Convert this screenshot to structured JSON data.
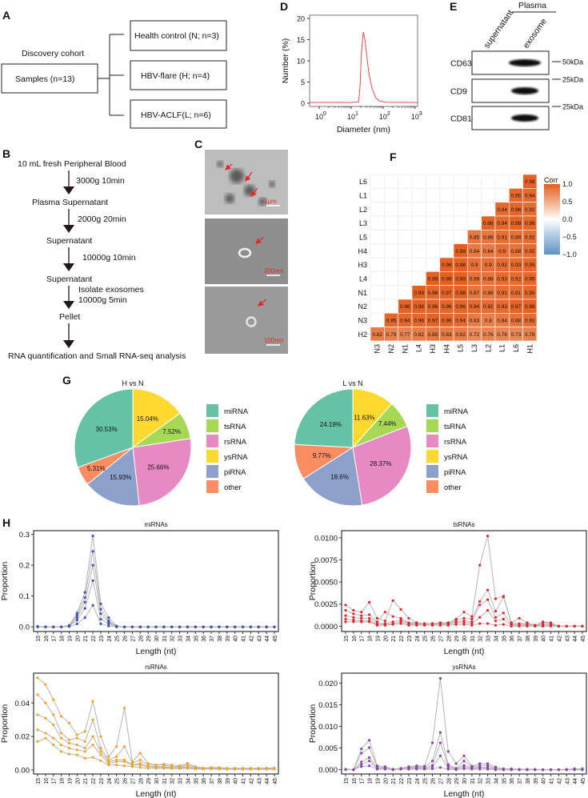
{
  "panel_labels": {
    "A": "A",
    "B": "B",
    "C": "C",
    "D": "D",
    "E": "E",
    "F": "F",
    "G": "G",
    "H": "H"
  },
  "panel_a": {
    "cohort_title": "Discovery cohort",
    "samples": "Samples  (n=13)",
    "groups": [
      "Health control  (N; n=3)",
      "HBV-flare (H; n=4)",
      "HBV-ACLF(L; n=6)"
    ]
  },
  "panel_b": {
    "steps": [
      "10 mL fresh Peripheral Blood",
      "Plasma Supernatant",
      "Supernatant",
      "Supernatant",
      "Pellet",
      "RNA quantification and  Small RNA-seq analysis"
    ],
    "conditions": [
      "3000g  10min",
      "2000g  20min",
      "10000g  10min",
      "Isolate exosomes",
      "10000g  5min"
    ]
  },
  "panel_c": {
    "scale_bars": [
      "1μm",
      "200nm",
      "100nm"
    ]
  },
  "panel_e": {
    "group": "Plasma",
    "lanes": [
      "supernatant",
      "exosome"
    ],
    "proteins": [
      "CD63",
      "CD9",
      "CD81"
    ],
    "markers": [
      "50kDa",
      "25kDa",
      "25kDa"
    ]
  },
  "colors": {
    "heat_high": "#E35F1E",
    "heat_low": "#5F93C2",
    "dls_line": "#F0484B",
    "mi": "#3F51B5",
    "ts": "#F0202A",
    "rs": "#F9A21B",
    "ys": "#8E44AD",
    "line_gray": "#B5B5B5"
  },
  "chart_data": [
    {
      "id": "D",
      "type": "line",
      "xlabel": "Diameter (nm)",
      "ylabel": "Number (%)",
      "xscale": "log",
      "xlim": [
        0.5,
        1200
      ],
      "ylim": [
        0,
        20
      ],
      "xticks": [
        1,
        10,
        100,
        1000
      ],
      "xtick_labels": [
        "10",
        "10",
        "10",
        "10"
      ],
      "xtick_exps": [
        "0",
        "1",
        "2",
        "3"
      ],
      "yticks": [
        0,
        5,
        10,
        15,
        20
      ],
      "ytick_labels": [
        "0",
        "5",
        "10",
        "15",
        "20"
      ],
      "x": [
        0.5,
        1,
        10,
        17,
        19,
        21,
        24,
        27,
        31,
        36,
        45,
        60,
        80,
        120,
        1000,
        1200
      ],
      "y": [
        0.2,
        0.2,
        0.2,
        0.3,
        4,
        12,
        16.8,
        15,
        11,
        7,
        3.5,
        1.2,
        0.5,
        0.25,
        0.2,
        0.2
      ]
    },
    {
      "id": "F",
      "type": "heatmap",
      "legend_title": "Corr",
      "legend_ticks": [
        "1.0",
        "0.5",
        "0.0",
        "−0.5",
        "−1.0"
      ],
      "rows": [
        "L6",
        "L1",
        "L2",
        "L3",
        "L5",
        "H4",
        "H3",
        "L4",
        "N1",
        "N2",
        "N3",
        "H2"
      ],
      "cols": [
        "N3",
        "N2",
        "N1",
        "L4",
        "H3",
        "H4",
        "L5",
        "L3",
        "L2",
        "L1",
        "L6",
        "H1"
      ],
      "values": [
        [
          0.98
        ],
        [
          0.95,
          0.94
        ],
        [
          0.94,
          0.96,
          0.92
        ],
        [
          0.98,
          0.94,
          0.98,
          0.96
        ],
        [
          0.85,
          0.86,
          0.91,
          0.89,
          0.92
        ],
        [
          0.99,
          0.84,
          0.84,
          0.9,
          0.88,
          0.92
        ],
        [
          0.98,
          0.98,
          0.9,
          0.9,
          0.92,
          0.93,
          0.95
        ],
        [
          0.99,
          0.99,
          0.99,
          0.89,
          0.88,
          0.93,
          0.92,
          0.95
        ],
        [
          0.99,
          0.96,
          0.97,
          0.98,
          0.87,
          0.86,
          0.91,
          0.91,
          0.95
        ],
        [
          0.98,
          0.98,
          0.96,
          0.96,
          0.96,
          0.94,
          0.92,
          0.93,
          0.97,
          0.98
        ],
        [
          0.95,
          0.94,
          0.96,
          0.97,
          0.96,
          0.94,
          0.83,
          0.8,
          0.84,
          0.88,
          0.92
        ],
        [
          0.82,
          0.79,
          0.77,
          0.82,
          0.85,
          0.83,
          0.82,
          0.72,
          0.76,
          0.76,
          0.73,
          0.78
        ]
      ]
    },
    {
      "id": "G1",
      "type": "pie",
      "title": "H  vs  N",
      "slices": [
        {
          "name": "ysRNA",
          "value": 15.04,
          "label": "15.04%",
          "color": "#FFD92F"
        },
        {
          "name": "tsRNA",
          "value": 7.52,
          "label": "7.52%",
          "color": "#A6D854"
        },
        {
          "name": "rsRNA",
          "value": 25.66,
          "label": "25.66%",
          "color": "#E78AC3"
        },
        {
          "name": "piRNA",
          "value": 15.93,
          "label": "15.93%",
          "color": "#8DA0CB"
        },
        {
          "name": "other",
          "value": 5.31,
          "label": "5.31%",
          "color": "#FC8D62"
        },
        {
          "name": "miRNA",
          "value": 30.53,
          "label": "30.53%",
          "color": "#66C2A5"
        }
      ],
      "legend": [
        "miRNA",
        "tsRNA",
        "rsRNA",
        "ysRNA",
        "piRNA",
        "other"
      ]
    },
    {
      "id": "G2",
      "type": "pie",
      "title": "L  vs  N",
      "slices": [
        {
          "name": "ysRNA",
          "value": 11.63,
          "label": "11.63%",
          "color": "#FFD92F"
        },
        {
          "name": "tsRNA",
          "value": 7.44,
          "label": "7.44%",
          "color": "#A6D854"
        },
        {
          "name": "rsRNA",
          "value": 28.37,
          "label": "28.37%",
          "color": "#E78AC3"
        },
        {
          "name": "piRNA",
          "value": 18.6,
          "label": "18.6%",
          "color": "#8DA0CB"
        },
        {
          "name": "other",
          "value": 9.77,
          "label": "9.77%",
          "color": "#FC8D62"
        },
        {
          "name": "miRNA",
          "value": 24.19,
          "label": "24.19%",
          "color": "#66C2A5"
        }
      ],
      "legend": [
        "miRNA",
        "tsRNA",
        "rsRNA",
        "ysRNA",
        "piRNA",
        "other"
      ]
    },
    {
      "id": "H-mi",
      "type": "line",
      "title": "miRNAs",
      "xlabel": "Length (nt)",
      "ylabel": "Proportion",
      "x_start": 15,
      "x_end": 45,
      "ylim": [
        -0.015,
        0.312
      ],
      "yticks": [
        0,
        0.1,
        0.2,
        0.3
      ],
      "ytick_labels": [
        "0.0",
        "0.1",
        "0.2",
        "0.3"
      ],
      "color_key": "mi",
      "series": [
        [
          0.002,
          0,
          0,
          0,
          0.005,
          0.045,
          0.112,
          0.295,
          0.075,
          0.03,
          0.003,
          0,
          0,
          0,
          0,
          0,
          0,
          0,
          0,
          0,
          0,
          0,
          0,
          0,
          0,
          0,
          0,
          0,
          0,
          0,
          0
        ],
        [
          0.001,
          0,
          0,
          0,
          0.004,
          0.038,
          0.095,
          0.245,
          0.057,
          0.02,
          0.002,
          0,
          0,
          0,
          0,
          0,
          0,
          0,
          0,
          0,
          0,
          0,
          0,
          0,
          0,
          0,
          0,
          0,
          0,
          0,
          0
        ],
        [
          0.001,
          0,
          0,
          0,
          0.003,
          0.03,
          0.08,
          0.2,
          0.043,
          0.015,
          0.001,
          0,
          0,
          0,
          0,
          0,
          0,
          0,
          0,
          0,
          0,
          0,
          0,
          0,
          0,
          0,
          0,
          0,
          0,
          0,
          0
        ],
        [
          0,
          0,
          0,
          0,
          0.002,
          0.022,
          0.06,
          0.15,
          0.025,
          0.01,
          0.001,
          0,
          0,
          0,
          0,
          0,
          0,
          0,
          0,
          0,
          0,
          0,
          0,
          0,
          0,
          0,
          0,
          0,
          0,
          0,
          0
        ],
        [
          0,
          0,
          0,
          0,
          0.001,
          0.01,
          0.03,
          0.07,
          0.01,
          0.003,
          0,
          0,
          0,
          0,
          0,
          0,
          0,
          0,
          0,
          0,
          0,
          0,
          0,
          0,
          0,
          0,
          0,
          0,
          0,
          0,
          0
        ]
      ]
    },
    {
      "id": "H-ts",
      "type": "line",
      "title": "tsRNAs",
      "xlabel": "Length (nt)",
      "ylabel": "Proportion",
      "x_start": 15,
      "x_end": 45,
      "ylim": [
        -0.0006,
        0.0108
      ],
      "yticks": [
        0,
        0.0025,
        0.005,
        0.0075,
        0.01
      ],
      "ytick_labels": [
        "0.0000",
        "0.0025",
        "0.0050",
        "0.0075",
        "0.0100"
      ],
      "color_key": "ts",
      "series": [
        [
          0.0024,
          0.0018,
          0.0016,
          0.0027,
          0.0009,
          0.0006,
          0.0029,
          0.0019,
          0.0009,
          0.0004,
          0.0003,
          0.0003,
          0.0004,
          0.0004,
          0.0008,
          0.0016,
          0.0011,
          0.0069,
          0.0102,
          0.0031,
          0.0034,
          0.0004,
          0.0009,
          0.0004,
          0.0001,
          0.0005,
          0.0004,
          0,
          0,
          0,
          0
        ],
        [
          0.0018,
          0.0014,
          0.0012,
          0.0013,
          0.0005,
          0.0016,
          0.0011,
          0.0009,
          0.0004,
          0.0004,
          0.0003,
          0.0003,
          0.0004,
          0.0004,
          0.0007,
          0.0009,
          0.0008,
          0.0028,
          0.0041,
          0.0017,
          0.0033,
          0.0003,
          0.0003,
          0.0003,
          0.0001,
          0.0004,
          0.0003,
          0,
          0,
          0,
          0
        ],
        [
          0.0012,
          0.001,
          0.0009,
          0.0009,
          0.0003,
          0.0003,
          0.0005,
          0.0007,
          0.0003,
          0.0003,
          0.0002,
          0.0003,
          0.0003,
          0.0003,
          0.0005,
          0.0006,
          0.0005,
          0.0024,
          0.003,
          0.001,
          0.0015,
          0.0002,
          0.0002,
          0.0002,
          0.0001,
          0.0002,
          0.0002,
          0,
          0,
          0,
          0
        ],
        [
          0.0008,
          0.0007,
          0.0006,
          0.0006,
          0.0002,
          0.0002,
          0.0003,
          0.0005,
          0.0002,
          0.0002,
          0.0002,
          0.0002,
          0.0002,
          0.0002,
          0.0004,
          0.0004,
          0.0003,
          0.001,
          0.0018,
          0.0006,
          0.0008,
          0.0001,
          0.0001,
          0.0001,
          0.0001,
          0.0001,
          0.0001,
          0,
          0,
          0,
          0
        ],
        [
          0.0005,
          0.0005,
          0.0005,
          0.0005,
          0.0001,
          0.0001,
          0.0002,
          0.0003,
          0.0001,
          0.0001,
          0.0001,
          0.0001,
          0.0001,
          0.0001,
          0.0002,
          0.0002,
          0.0001,
          0.0003,
          0.0003,
          0.0001,
          0.0002,
          0,
          0,
          0,
          0,
          0,
          0,
          0,
          0,
          0,
          0
        ]
      ]
    },
    {
      "id": "H-rs",
      "type": "line",
      "title": "rsRNAs",
      "xlabel": "Length (nt)",
      "ylabel": "Proportion",
      "x_start": 15,
      "x_end": 45,
      "ylim": [
        -0.0024,
        0.0578
      ],
      "yticks": [
        0,
        0.02,
        0.04
      ],
      "ytick_labels": [
        "0.00",
        "0.02",
        "0.04"
      ],
      "color_key": "rs",
      "series": [
        [
          0.055,
          0.051,
          0.042,
          0.032,
          0.028,
          0.021,
          0.023,
          0.041,
          0.02,
          0.008,
          0.014,
          0.037,
          0.005,
          0.01,
          0.004,
          0.003,
          0.0035,
          0.003,
          0.0025,
          0.004,
          0.002,
          0.0012,
          0.0015,
          0.0015,
          0.001,
          0.001,
          0.001,
          0.001,
          0.001,
          0.0012,
          0.0012
        ],
        [
          0.045,
          0.04,
          0.033,
          0.022,
          0.018,
          0.019,
          0.017,
          0.03,
          0.013,
          0.006,
          0.008,
          0.014,
          0.004,
          0.006,
          0.003,
          0.003,
          0.003,
          0.002,
          0.002,
          0.003,
          0.0015,
          0.001,
          0.001,
          0.001,
          0.001,
          0.001,
          0.001,
          0.001,
          0.001,
          0.001,
          0.001
        ],
        [
          0.033,
          0.031,
          0.027,
          0.019,
          0.016,
          0.015,
          0.013,
          0.02,
          0.011,
          0.005,
          0.006,
          0.006,
          0.003,
          0.004,
          0.002,
          0.002,
          0.002,
          0.0015,
          0.0015,
          0.002,
          0.001,
          0.001,
          0.001,
          0.001,
          0.0008,
          0.0008,
          0.0008,
          0.0008,
          0.0008,
          0.0008,
          0.0008
        ],
        [
          0.024,
          0.022,
          0.019,
          0.015,
          0.013,
          0.012,
          0.011,
          0.015,
          0.009,
          0.004,
          0.005,
          0.005,
          0.003,
          0.003,
          0.002,
          0.0015,
          0.0015,
          0.001,
          0.001,
          0.0015,
          0.001,
          0.0008,
          0.0008,
          0.0008,
          0.0006,
          0.0006,
          0.0006,
          0.0006,
          0.0006,
          0.0006,
          0.0006
        ],
        [
          0.017,
          0.019,
          0.015,
          0.011,
          0.0095,
          0.009,
          0.007,
          0.0075,
          0.0055,
          0.003,
          0.003,
          0.0025,
          0.002,
          0.0015,
          0.001,
          0.001,
          0.001,
          0.0008,
          0.0008,
          0.001,
          0.0005,
          0.0005,
          0.0005,
          0.0005,
          0.0004,
          0.0004,
          0.0004,
          0.0004,
          0.0004,
          0.0004,
          0.0004
        ]
      ]
    },
    {
      "id": "H-ys",
      "type": "line",
      "title": "ysRNAs",
      "xlabel": "Length (nt)",
      "ylabel": "Proportion",
      "x_start": 15,
      "x_end": 45,
      "ylim": [
        -0.001,
        0.0223
      ],
      "yticks": [
        0,
        0.005,
        0.01,
        0.015,
        0.02
      ],
      "ytick_labels": [
        "0.000",
        "0.005",
        "0.010",
        "0.015",
        "0.020"
      ],
      "color_key": "ys",
      "series": [
        [
          0.0001,
          0,
          0.0048,
          0.0068,
          0.0009,
          0.0007,
          0.0001,
          0.0003,
          0.0007,
          0.0009,
          0.0008,
          0.0062,
          0.0211,
          0.0042,
          0.0014,
          0.0032,
          0.0008,
          0.0014,
          0.0014,
          0.0006,
          0.0002,
          0.0002,
          0.0001,
          0.0001,
          0.0001,
          0,
          0,
          0,
          0.0001,
          0.0002,
          0.0002
        ],
        [
          0.0001,
          0,
          0.0038,
          0.0051,
          0.0007,
          0.0005,
          0.0001,
          0.0003,
          0.0006,
          0.0007,
          0.0006,
          0.002,
          0.0086,
          0.0012,
          0.0003,
          0.002,
          0.0006,
          0.001,
          0.001,
          0.0003,
          0.0001,
          0.0001,
          0,
          0,
          0,
          0,
          0,
          0,
          0,
          0.0001,
          0.0001
        ],
        [
          0.0001,
          0,
          0.0018,
          0.0028,
          0.0004,
          0.0003,
          0,
          0.0002,
          0.0004,
          0.0005,
          0.0004,
          0.001,
          0.0062,
          0.0008,
          0.0002,
          0.001,
          0.0004,
          0.0006,
          0.0006,
          0.0001,
          0,
          0,
          0,
          0,
          0,
          0,
          0,
          0,
          0,
          0,
          0
        ],
        [
          0.0001,
          0,
          0.0012,
          0.002,
          0.0002,
          0.0002,
          0,
          0.0001,
          0.0002,
          0.0003,
          0.0002,
          0.0006,
          0.0032,
          0.0004,
          0.0001,
          0.0006,
          0.0002,
          0.0004,
          0.0003,
          0,
          0,
          0,
          0,
          0,
          0,
          0,
          0,
          0,
          0,
          0,
          0
        ],
        [
          0,
          0,
          0.0007,
          0.0009,
          0.0001,
          0.0001,
          0,
          0.0001,
          0.0001,
          0.0001,
          0.0001,
          0.0002,
          0.0005,
          0.0001,
          0,
          0.0002,
          0.0001,
          0.0001,
          0.0001,
          0,
          0,
          0,
          0,
          0,
          0,
          0,
          0,
          0,
          0,
          0,
          0
        ]
      ]
    }
  ]
}
